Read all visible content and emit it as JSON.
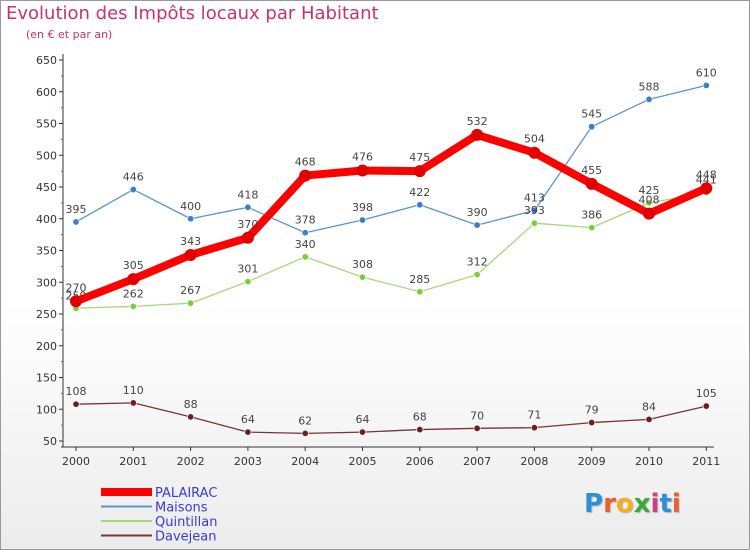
{
  "header": {
    "title": "Evolution des Impôts locaux par Habitant",
    "subtitle": "(en € et par an)"
  },
  "logo": {
    "letters": [
      "P",
      "r",
      "o",
      "x",
      "i",
      "t",
      "i"
    ],
    "colors": [
      "#2f8fd6",
      "#e8612c",
      "#f0b020",
      "#3aa83a",
      "#d23a8a",
      "#2f8fd6",
      "#e8612c"
    ]
  },
  "chart_data": {
    "type": "line",
    "title": "Evolution des Impôts locaux par Habitant",
    "subtitle": "(en € et par an)",
    "xlabel": "",
    "ylabel": "",
    "categories": [
      "2000",
      "2001",
      "2002",
      "2003",
      "2004",
      "2005",
      "2006",
      "2007",
      "2008",
      "2009",
      "2010",
      "2011"
    ],
    "ylim": [
      50,
      650
    ],
    "yticks": [
      50,
      100,
      150,
      200,
      250,
      300,
      350,
      400,
      450,
      500,
      550,
      600,
      650
    ],
    "grid": false,
    "legend_position": "bottom-left",
    "series": [
      {
        "name": "Maisons",
        "color": "#5a96c8",
        "dot": "#3d7fc4",
        "width": 1.3,
        "marker": 3.2,
        "values": [
          395,
          446,
          400,
          418,
          378,
          398,
          422,
          390,
          413,
          545,
          588,
          610
        ]
      },
      {
        "name": "Quintillan",
        "color": "#a6d87a",
        "dot": "#7ccd3e",
        "width": 1.3,
        "marker": 3.2,
        "values": [
          259,
          262,
          267,
          301,
          340,
          308,
          285,
          312,
          393,
          386,
          425,
          441
        ]
      },
      {
        "name": "Davejean",
        "color": "#7a3434",
        "dot": "#6b1f1f",
        "width": 1.3,
        "marker": 3.2,
        "values": [
          108,
          110,
          88,
          64,
          62,
          64,
          68,
          70,
          71,
          79,
          84,
          105
        ]
      },
      {
        "name": "PALAIRAC",
        "color": "#ff0000",
        "dot": "#e00000",
        "width": 8,
        "marker": 6,
        "values": [
          270,
          305,
          343,
          370,
          468,
          476,
          475,
          532,
          504,
          455,
          408,
          448
        ]
      }
    ],
    "legend_order": [
      "PALAIRAC",
      "Maisons",
      "Quintillan",
      "Davejean"
    ]
  }
}
